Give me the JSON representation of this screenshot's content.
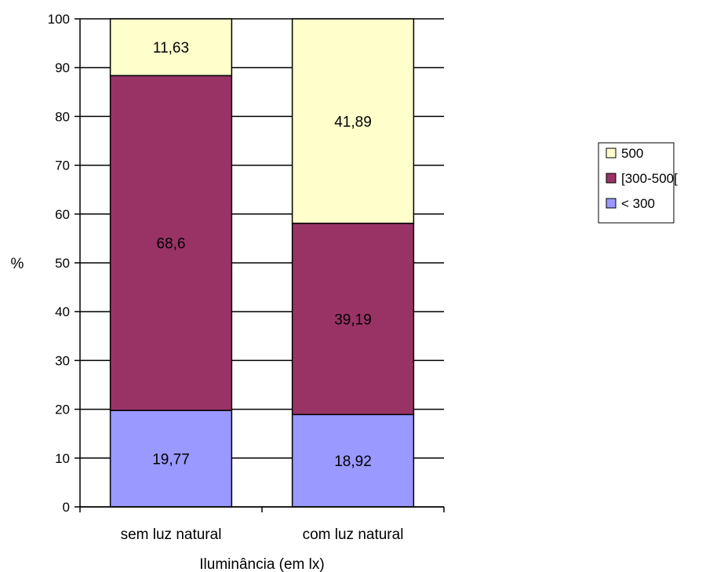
{
  "chart_data": {
    "type": "bar",
    "stacked": true,
    "categories": [
      "sem luz natural",
      "com luz natural"
    ],
    "series": [
      {
        "name": "< 300",
        "color": "#9999ff",
        "values": [
          19.77,
          18.92
        ],
        "labels": [
          "19,77",
          "18,92"
        ]
      },
      {
        "name": "[300-500[",
        "color": "#993366",
        "values": [
          68.6,
          39.19
        ],
        "labels": [
          "68,6",
          "39,19"
        ]
      },
      {
        "name": "500",
        "color": "#ffffcc",
        "values": [
          11.63,
          41.89
        ],
        "labels": [
          "11,63",
          "41,89"
        ]
      }
    ],
    "xlabel": "Iluminância (em lx)",
    "ylabel": "%",
    "ylim": [
      0,
      100
    ],
    "yticks": [
      0,
      10,
      20,
      30,
      40,
      50,
      60,
      70,
      80,
      90,
      100
    ],
    "legend_position": "right",
    "grid": false
  }
}
